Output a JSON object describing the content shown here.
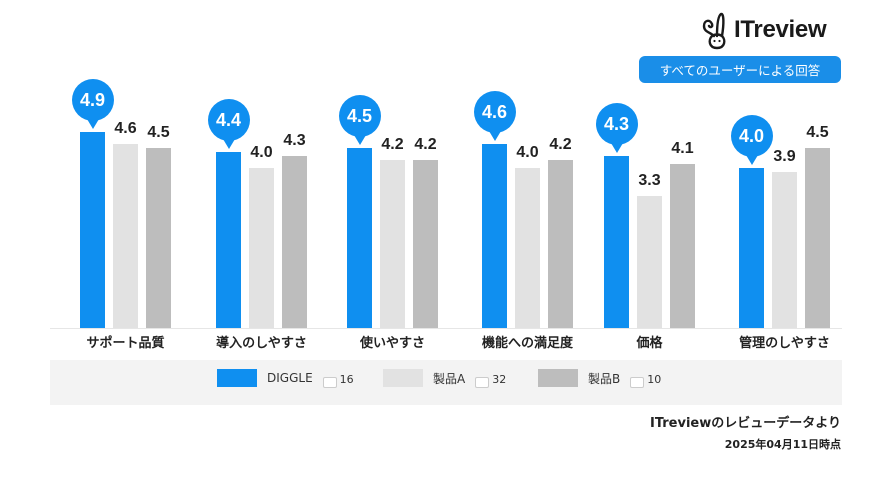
{
  "header": {
    "logo_text": "ITreview",
    "logo_icon": "rabbit-mascot-icon",
    "filter_button_label": "すべてのユーザーによる回答"
  },
  "colors": {
    "DIGGLE": "#0f8ff0",
    "製品A": "#e2e2e2",
    "製品B": "#bdbdbd",
    "accent": "#1a8ee8",
    "legend_bg": "#f3f3f3"
  },
  "chart_data": {
    "type": "bar",
    "title": "",
    "xlabel": "",
    "ylabel": "",
    "ylim": [
      0,
      5
    ],
    "grid": false,
    "legend_position": "bottom",
    "categories": [
      "サポート品質",
      "導入のしやすさ",
      "使いやすさ",
      "機能への満足度",
      "価格",
      "管理のしやすさ"
    ],
    "series": [
      {
        "name": "DIGGLE",
        "review_count": 16,
        "values": [
          4.9,
          4.4,
          4.5,
          4.6,
          4.3,
          4.0
        ]
      },
      {
        "name": "製品A",
        "review_count": 32,
        "values": [
          4.6,
          4.0,
          4.2,
          4.0,
          3.3,
          3.9
        ]
      },
      {
        "name": "製品B",
        "review_count": 10,
        "values": [
          4.5,
          4.3,
          4.2,
          4.2,
          4.1,
          4.5
        ]
      }
    ]
  },
  "legend": [
    {
      "label": "DIGGLE",
      "count": "16"
    },
    {
      "label": "製品A",
      "count": "32"
    },
    {
      "label": "製品B",
      "count": "10"
    }
  ],
  "footer": {
    "source": "ITreviewのレビューデータより",
    "date": "2025年04月11日時点"
  }
}
